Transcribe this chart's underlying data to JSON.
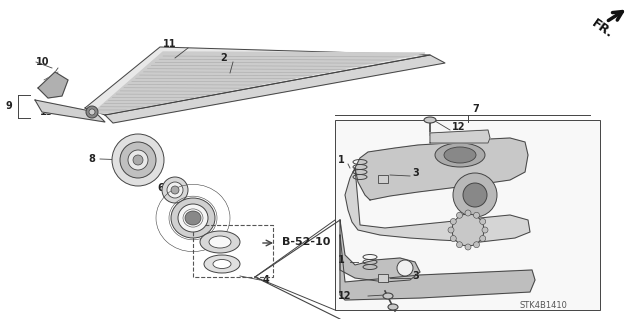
{
  "bg_color": "#ffffff",
  "diagram_code": "STK4B1410",
  "gray": "#444444",
  "lgray": "#888888",
  "dgray": "#222222"
}
